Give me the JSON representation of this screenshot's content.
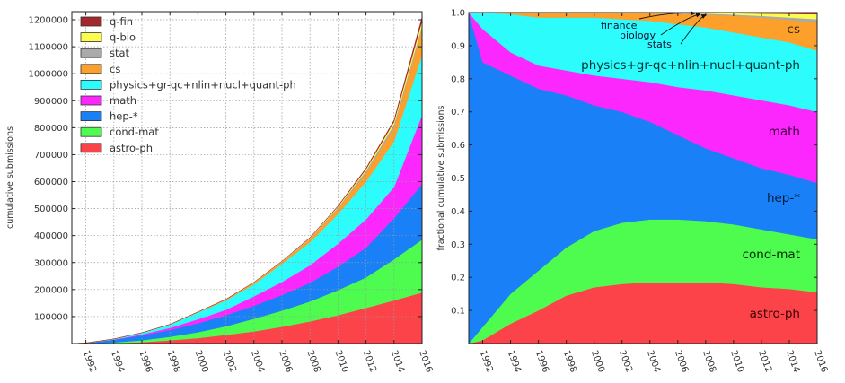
{
  "chart_data": [
    {
      "type": "area",
      "stacked": true,
      "title": "",
      "xlabel": "",
      "ylabel": "cumulative submissions",
      "x": [
        1991,
        1992,
        1994,
        1996,
        1998,
        2000,
        2002,
        2004,
        2006,
        2008,
        2010,
        2012,
        2014,
        2016
      ],
      "xlim": [
        1991,
        2016
      ],
      "ylim": [
        0,
        1230000
      ],
      "xticks": [
        "1992",
        "1994",
        "1996",
        "1998",
        "2000",
        "2002",
        "2004",
        "2006",
        "2008",
        "2010",
        "2012",
        "2014",
        "2016"
      ],
      "yticks": [
        "100000",
        "200000",
        "300000",
        "400000",
        "500000",
        "600000",
        "700000",
        "800000",
        "900000",
        "1000000",
        "1100000",
        "1200000"
      ],
      "grid": true,
      "legend_position": "top-left",
      "series_cumulative_note": "values are cumulative stacked tops",
      "series": [
        {
          "name": "astro-ph",
          "color": "#fc4349",
          "values": [
            0,
            100,
            1500,
            5000,
            12000,
            20000,
            32000,
            45000,
            62000,
            82000,
            105000,
            132000,
            160000,
            189000
          ]
        },
        {
          "name": "cond-mat",
          "color": "#4dfc4f",
          "values": [
            0,
            400,
            4000,
            12000,
            25000,
            42000,
            64000,
            92000,
            122000,
            156000,
            198000,
            245000,
            312000,
            385000
          ]
        },
        {
          "name": "hep-*",
          "color": "#1a80f8",
          "values": [
            0,
            2000,
            14000,
            30000,
            50000,
            75000,
            105000,
            140000,
            180000,
            225000,
            285000,
            355000,
            465000,
            591000
          ]
        },
        {
          "name": "math",
          "color": "#fc27fc",
          "values": [
            0,
            2000,
            15000,
            34000,
            58000,
            90000,
            125000,
            175000,
            228000,
            290000,
            370000,
            460000,
            580000,
            847000
          ]
        },
        {
          "name": "physics+gr-qc+nlin+nucl+quant-ph",
          "color": "#2cfcfc",
          "values": [
            0,
            2000,
            17000,
            40000,
            70000,
            115000,
            160000,
            220000,
            295000,
            375000,
            480000,
            600000,
            750000,
            1070000
          ]
        },
        {
          "name": "cs",
          "color": "#fc9f2b",
          "values": [
            0,
            2000,
            17000,
            40000,
            71000,
            117000,
            164000,
            226000,
            303000,
            388000,
            500000,
            632000,
            800000,
            1166000
          ]
        },
        {
          "name": "stat",
          "color": "#aaaaaa",
          "values": [
            0,
            2000,
            17000,
            40000,
            71000,
            117000,
            164000,
            226000,
            304000,
            390000,
            504000,
            640000,
            812000,
            1178000
          ]
        },
        {
          "name": "q-bio",
          "color": "#fcfc4f",
          "values": [
            0,
            2000,
            17000,
            40000,
            71000,
            117000,
            164000,
            227000,
            305000,
            392000,
            508000,
            646000,
            822000,
            1196000
          ]
        },
        {
          "name": "q-fin",
          "color": "#a3272b",
          "values": [
            0,
            2000,
            17000,
            40000,
            71000,
            117000,
            164000,
            227000,
            305000,
            393000,
            510000,
            650000,
            828000,
            1210000
          ]
        }
      ],
      "legend": [
        "q-fin",
        "q-bio",
        "stat",
        "cs",
        "physics+gr-qc+nlin+nucl+quant-ph",
        "math",
        "hep-*",
        "cond-mat",
        "astro-ph"
      ]
    },
    {
      "type": "area",
      "stacked": true,
      "title": "",
      "xlabel": "",
      "ylabel": "fractional cumulative submissions",
      "x": [
        1991,
        1992,
        1994,
        1996,
        1998,
        2000,
        2002,
        2004,
        2006,
        2008,
        2010,
        2012,
        2014,
        2016
      ],
      "xlim": [
        1991,
        2016
      ],
      "ylim": [
        0,
        1.0
      ],
      "xticks": [
        "1992",
        "1994",
        "1996",
        "1998",
        "2000",
        "2002",
        "2004",
        "2006",
        "2008",
        "2010",
        "2012",
        "2014",
        "2016"
      ],
      "yticks": [
        "0.1",
        "0.2",
        "0.3",
        "0.4",
        "0.5",
        "0.6",
        "0.7",
        "0.8",
        "0.9",
        "1.0"
      ],
      "grid": false,
      "series": [
        {
          "name": "astro-ph",
          "label": "astro-ph",
          "color": "#fc4349",
          "values": [
            0,
            0.01,
            0.06,
            0.1,
            0.145,
            0.17,
            0.18,
            0.185,
            0.185,
            0.185,
            0.18,
            0.17,
            0.165,
            0.155
          ]
        },
        {
          "name": "cond-mat",
          "label": "cond-mat",
          "color": "#4dfc4f",
          "values": [
            0,
            0.05,
            0.15,
            0.22,
            0.29,
            0.34,
            0.365,
            0.375,
            0.375,
            0.37,
            0.36,
            0.345,
            0.33,
            0.315
          ]
        },
        {
          "name": "hep-*",
          "label": "hep-*",
          "color": "#1a80f8",
          "values": [
            1.0,
            0.85,
            0.81,
            0.77,
            0.75,
            0.72,
            0.7,
            0.67,
            0.63,
            0.59,
            0.56,
            0.53,
            0.51,
            0.485
          ]
        },
        {
          "name": "math",
          "label": "math",
          "color": "#fc27fc",
          "values": [
            1.0,
            0.95,
            0.88,
            0.84,
            0.825,
            0.81,
            0.8,
            0.79,
            0.775,
            0.765,
            0.75,
            0.735,
            0.72,
            0.7
          ]
        },
        {
          "name": "physics+gr-qc+nlin+nucl+quant-ph",
          "label": "physics+gr-qc+nlin+nucl+quant-ph",
          "color": "#2cfcfc",
          "values": [
            1.0,
            1.0,
            0.995,
            0.985,
            0.985,
            0.985,
            0.98,
            0.975,
            0.965,
            0.955,
            0.94,
            0.925,
            0.91,
            0.885
          ]
        },
        {
          "name": "cs",
          "label": "cs",
          "color": "#fc9f2b",
          "values": [
            1.0,
            1.0,
            1.0,
            1.0,
            1.0,
            1.0,
            0.999,
            0.998,
            0.996,
            0.994,
            0.99,
            0.985,
            0.978,
            0.97
          ]
        },
        {
          "name": "stat",
          "label": "",
          "color": "#aaaaaa",
          "values": [
            1.0,
            1.0,
            1.0,
            1.0,
            1.0,
            1.0,
            0.999,
            0.999,
            0.998,
            0.997,
            0.994,
            0.99,
            0.985,
            0.98
          ]
        },
        {
          "name": "q-bio",
          "label": "",
          "color": "#fcfc4f",
          "values": [
            1.0,
            1.0,
            1.0,
            1.0,
            1.0,
            1.0,
            1.0,
            1.0,
            0.999,
            0.999,
            0.998,
            0.997,
            0.996,
            0.995
          ]
        },
        {
          "name": "q-fin",
          "label": "",
          "color": "#a3272b",
          "values": [
            1.0,
            1.0,
            1.0,
            1.0,
            1.0,
            1.0,
            1.0,
            1.0,
            1.0,
            1.0,
            1.0,
            1.0,
            1.0,
            1.0
          ]
        }
      ],
      "annotations": [
        {
          "text": "finance",
          "target_year": 2007.2,
          "target_value": 1.0
        },
        {
          "text": "biology",
          "target_year": 2007.6,
          "target_value": 0.998
        },
        {
          "text": "stats",
          "target_year": 2008.0,
          "target_value": 0.996
        }
      ]
    }
  ]
}
